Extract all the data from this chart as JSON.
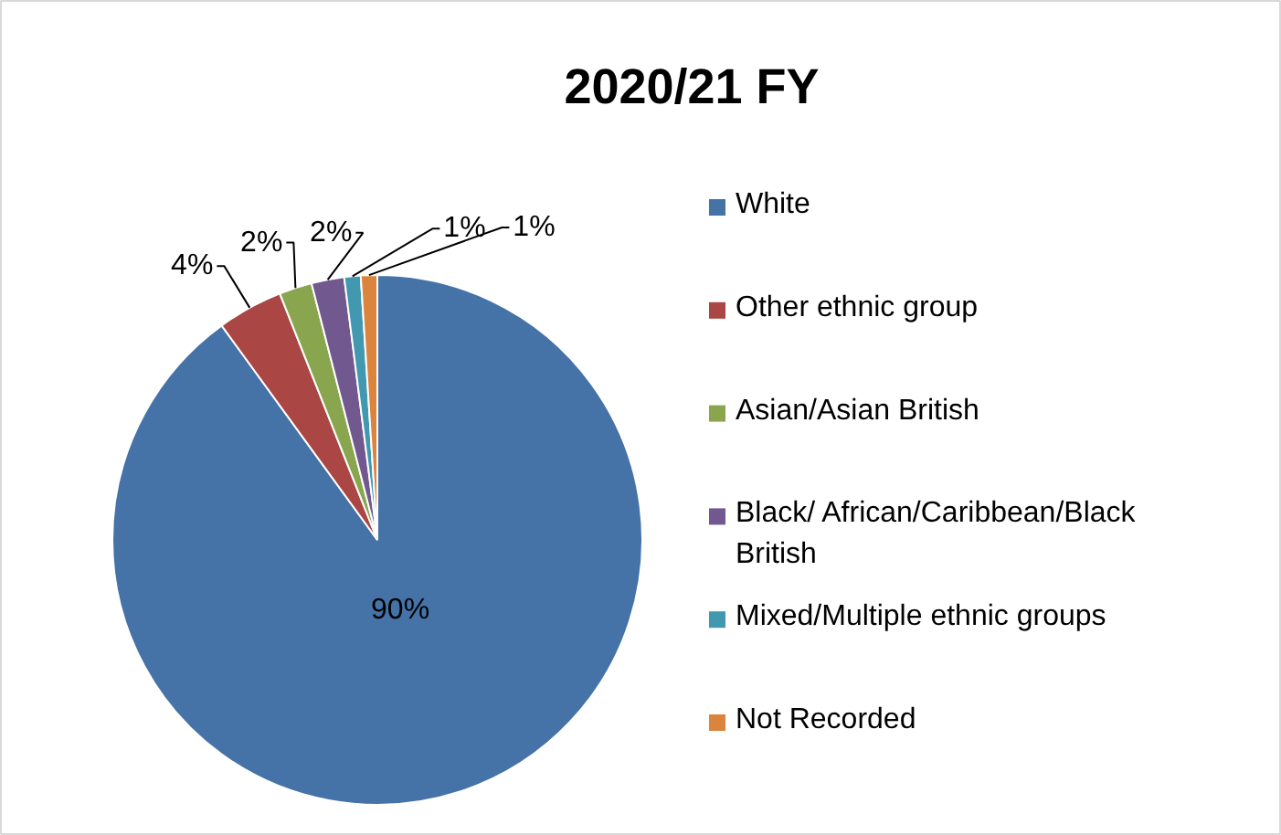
{
  "chart_data": {
    "type": "pie",
    "title": "2020/21 FY",
    "categories": [
      "White",
      "Other ethnic group",
      "Asian/Asian British",
      "Black/ African/Caribbean/Black British",
      "Mixed/Multiple ethnic groups",
      "Not Recorded"
    ],
    "values": [
      90,
      4,
      2,
      2,
      1,
      1
    ],
    "colors": [
      "#4572a7",
      "#aa4643",
      "#89a54e",
      "#71588f",
      "#4198af",
      "#db843d"
    ],
    "value_labels": [
      "90%",
      "4%",
      "2%",
      "2%",
      "1%",
      "1%"
    ],
    "legend": "right"
  }
}
